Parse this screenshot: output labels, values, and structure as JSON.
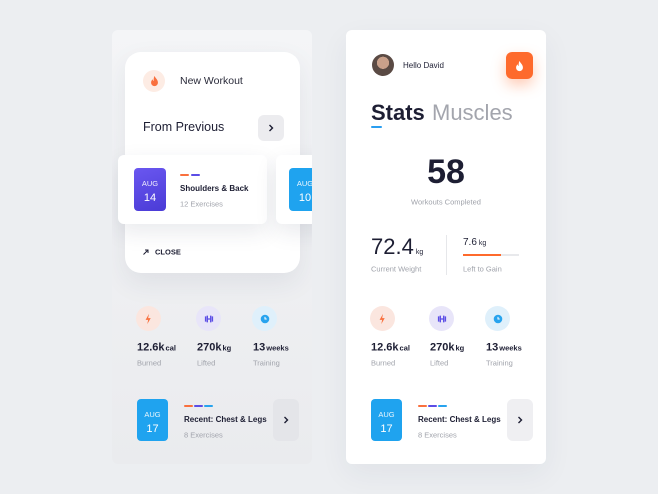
{
  "left": {
    "new_workout": "New Workout",
    "from_previous": "From Previous",
    "workouts": [
      {
        "month": "AUG",
        "day": "14",
        "title": "Shoulders & Back",
        "subtitle": "12 Exercises"
      },
      {
        "month": "AUG",
        "day": "10"
      }
    ],
    "close": "CLOSE",
    "stats": [
      {
        "value": "12.6k",
        "unit": "cal",
        "label": "Burned"
      },
      {
        "value": "270k",
        "unit": "kg",
        "label": "Lifted"
      },
      {
        "value": "13",
        "unit": "weeks",
        "label": "Training"
      }
    ],
    "recent": {
      "month": "AUG",
      "day": "17",
      "title": "Recent: Chest & Legs",
      "subtitle": "8 Exercises"
    }
  },
  "right": {
    "greeting": "Hello David",
    "tabs": [
      "Stats",
      "Muscles"
    ],
    "workouts_completed": {
      "value": "58",
      "label": "Workouts Completed"
    },
    "weight": {
      "value": "72.4",
      "unit": "kg",
      "label": "Current Weight"
    },
    "gain": {
      "value": "7.6",
      "unit": "kg",
      "label": "Left to Gain"
    },
    "stats": [
      {
        "value": "12.6k",
        "unit": "cal",
        "label": "Burned"
      },
      {
        "value": "270k",
        "unit": "kg",
        "label": "Lifted"
      },
      {
        "value": "13",
        "unit": "weeks",
        "label": "Training"
      }
    ],
    "recent": {
      "month": "AUG",
      "day": "17",
      "title": "Recent: Chest & Legs",
      "subtitle": "8 Exercises"
    }
  }
}
